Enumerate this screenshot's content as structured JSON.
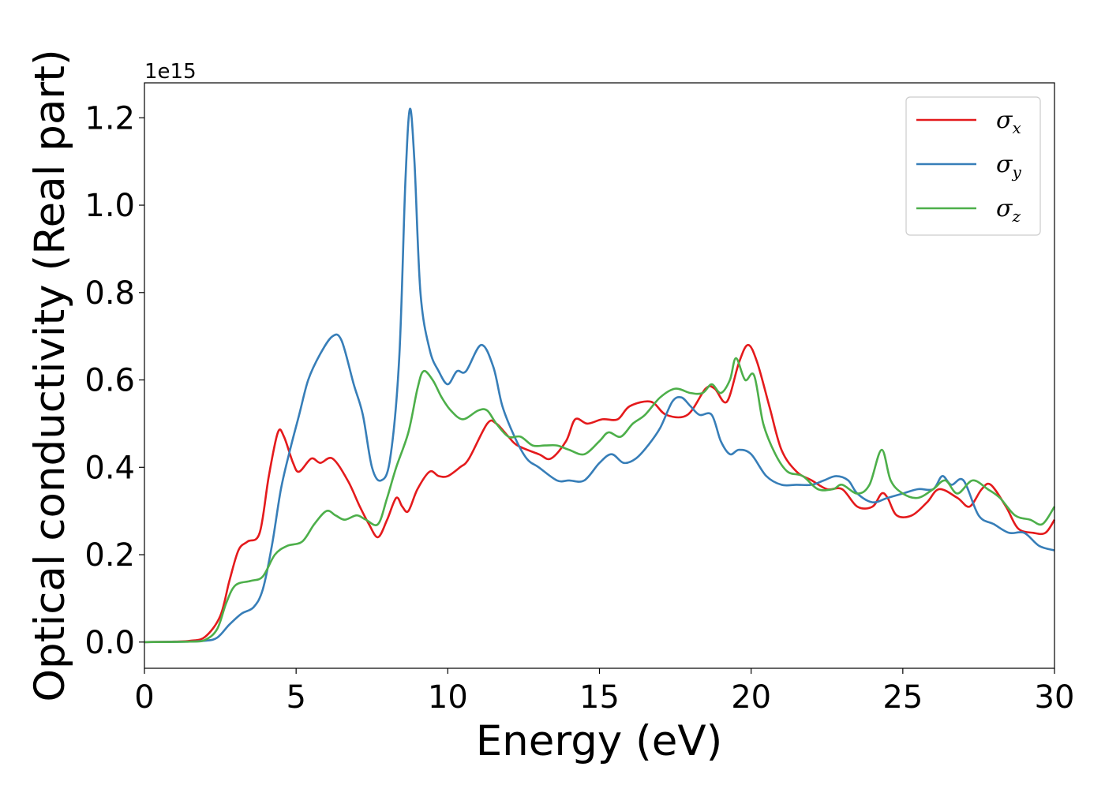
{
  "chart_data": {
    "type": "line",
    "xlabel": "Energy (eV)",
    "ylabel": "Optical conductivity (Real part)",
    "y_offset_label": "1e15",
    "xlim": [
      0,
      30
    ],
    "ylim": [
      -0.06,
      1.28
    ],
    "x_ticks": [
      0,
      5,
      10,
      15,
      20,
      25,
      30
    ],
    "x_tick_labels": [
      "0",
      "5",
      "10",
      "15",
      "20",
      "25",
      "30"
    ],
    "y_ticks": [
      0.0,
      0.2,
      0.4,
      0.6,
      0.8,
      1.0,
      1.2
    ],
    "y_tick_labels": [
      "0.0",
      "0.2",
      "0.4",
      "0.6",
      "0.8",
      "1.0",
      "1.2"
    ],
    "grid": false,
    "legend_position": "top-right",
    "series": [
      {
        "name": "σx",
        "symbol": "σ",
        "subscript": "x",
        "color": "#e41a1c",
        "points": [
          [
            0,
            0
          ],
          [
            1,
            0.001
          ],
          [
            1.5,
            0.003
          ],
          [
            2,
            0.012
          ],
          [
            2.5,
            0.06
          ],
          [
            2.8,
            0.14
          ],
          [
            3.1,
            0.21
          ],
          [
            3.4,
            0.23
          ],
          [
            3.8,
            0.25
          ],
          [
            4.1,
            0.38
          ],
          [
            4.4,
            0.48
          ],
          [
            4.6,
            0.47
          ],
          [
            4.9,
            0.41
          ],
          [
            5.1,
            0.39
          ],
          [
            5.5,
            0.42
          ],
          [
            5.8,
            0.41
          ],
          [
            6.2,
            0.42
          ],
          [
            6.7,
            0.37
          ],
          [
            7.1,
            0.31
          ],
          [
            7.4,
            0.27
          ],
          [
            7.7,
            0.24
          ],
          [
            8.0,
            0.28
          ],
          [
            8.3,
            0.33
          ],
          [
            8.5,
            0.31
          ],
          [
            8.7,
            0.3
          ],
          [
            9.0,
            0.35
          ],
          [
            9.4,
            0.39
          ],
          [
            9.7,
            0.38
          ],
          [
            10.0,
            0.38
          ],
          [
            10.4,
            0.4
          ],
          [
            10.7,
            0.42
          ],
          [
            11.3,
            0.5
          ],
          [
            11.6,
            0.5
          ],
          [
            12.0,
            0.47
          ],
          [
            12.3,
            0.45
          ],
          [
            13.0,
            0.43
          ],
          [
            13.4,
            0.42
          ],
          [
            13.9,
            0.46
          ],
          [
            14.2,
            0.51
          ],
          [
            14.6,
            0.5
          ],
          [
            15.1,
            0.51
          ],
          [
            15.6,
            0.51
          ],
          [
            16.0,
            0.54
          ],
          [
            16.7,
            0.55
          ],
          [
            17.2,
            0.52
          ],
          [
            17.9,
            0.52
          ],
          [
            18.5,
            0.58
          ],
          [
            18.8,
            0.58
          ],
          [
            19.2,
            0.55
          ],
          [
            19.6,
            0.64
          ],
          [
            19.9,
            0.68
          ],
          [
            20.2,
            0.64
          ],
          [
            20.6,
            0.54
          ],
          [
            21.0,
            0.44
          ],
          [
            21.5,
            0.39
          ],
          [
            22.0,
            0.37
          ],
          [
            22.5,
            0.35
          ],
          [
            23.0,
            0.35
          ],
          [
            23.5,
            0.31
          ],
          [
            24.0,
            0.31
          ],
          [
            24.3,
            0.34
          ],
          [
            24.5,
            0.33
          ],
          [
            24.8,
            0.29
          ],
          [
            25.3,
            0.29
          ],
          [
            25.8,
            0.32
          ],
          [
            26.2,
            0.35
          ],
          [
            26.8,
            0.33
          ],
          [
            27.2,
            0.31
          ],
          [
            27.6,
            0.35
          ],
          [
            27.9,
            0.36
          ],
          [
            28.4,
            0.31
          ],
          [
            28.8,
            0.26
          ],
          [
            29.3,
            0.25
          ],
          [
            29.7,
            0.25
          ],
          [
            30,
            0.28
          ]
        ]
      },
      {
        "name": "σy",
        "symbol": "σ",
        "subscript": "y",
        "color": "#377eb8",
        "points": [
          [
            0,
            0
          ],
          [
            1.5,
            0.001
          ],
          [
            2.0,
            0.003
          ],
          [
            2.4,
            0.01
          ],
          [
            2.8,
            0.04
          ],
          [
            3.2,
            0.065
          ],
          [
            3.6,
            0.08
          ],
          [
            3.9,
            0.12
          ],
          [
            4.2,
            0.22
          ],
          [
            4.5,
            0.35
          ],
          [
            4.8,
            0.44
          ],
          [
            5.1,
            0.52
          ],
          [
            5.4,
            0.6
          ],
          [
            5.8,
            0.66
          ],
          [
            6.2,
            0.7
          ],
          [
            6.5,
            0.69
          ],
          [
            6.9,
            0.59
          ],
          [
            7.2,
            0.52
          ],
          [
            7.5,
            0.4
          ],
          [
            7.8,
            0.37
          ],
          [
            8.1,
            0.42
          ],
          [
            8.4,
            0.65
          ],
          [
            8.6,
            1.05
          ],
          [
            8.75,
            1.22
          ],
          [
            8.9,
            1.1
          ],
          [
            9.1,
            0.8
          ],
          [
            9.4,
            0.67
          ],
          [
            9.7,
            0.62
          ],
          [
            10.0,
            0.59
          ],
          [
            10.3,
            0.62
          ],
          [
            10.6,
            0.62
          ],
          [
            11.1,
            0.68
          ],
          [
            11.5,
            0.63
          ],
          [
            11.8,
            0.54
          ],
          [
            12.2,
            0.47
          ],
          [
            12.6,
            0.42
          ],
          [
            13.0,
            0.4
          ],
          [
            13.6,
            0.37
          ],
          [
            14.0,
            0.37
          ],
          [
            14.5,
            0.37
          ],
          [
            15.0,
            0.41
          ],
          [
            15.4,
            0.43
          ],
          [
            15.8,
            0.41
          ],
          [
            16.2,
            0.42
          ],
          [
            16.6,
            0.45
          ],
          [
            17.0,
            0.49
          ],
          [
            17.4,
            0.55
          ],
          [
            17.7,
            0.56
          ],
          [
            18.0,
            0.54
          ],
          [
            18.3,
            0.52
          ],
          [
            18.7,
            0.52
          ],
          [
            19.0,
            0.46
          ],
          [
            19.3,
            0.43
          ],
          [
            19.6,
            0.44
          ],
          [
            20.0,
            0.43
          ],
          [
            20.5,
            0.38
          ],
          [
            21.0,
            0.36
          ],
          [
            21.5,
            0.36
          ],
          [
            22.0,
            0.36
          ],
          [
            22.4,
            0.37
          ],
          [
            22.8,
            0.38
          ],
          [
            23.2,
            0.37
          ],
          [
            23.5,
            0.34
          ],
          [
            24.0,
            0.32
          ],
          [
            24.5,
            0.33
          ],
          [
            25.0,
            0.34
          ],
          [
            25.5,
            0.35
          ],
          [
            26.0,
            0.35
          ],
          [
            26.3,
            0.38
          ],
          [
            26.6,
            0.36
          ],
          [
            27.0,
            0.37
          ],
          [
            27.5,
            0.29
          ],
          [
            28.0,
            0.27
          ],
          [
            28.5,
            0.25
          ],
          [
            29.0,
            0.25
          ],
          [
            29.5,
            0.22
          ],
          [
            30,
            0.21
          ]
        ]
      },
      {
        "name": "σz",
        "symbol": "σ",
        "subscript": "z",
        "color": "#4daf4a",
        "points": [
          [
            0,
            0
          ],
          [
            1.5,
            0.001
          ],
          [
            2.0,
            0.005
          ],
          [
            2.4,
            0.03
          ],
          [
            2.7,
            0.09
          ],
          [
            3.0,
            0.13
          ],
          [
            3.5,
            0.14
          ],
          [
            3.9,
            0.15
          ],
          [
            4.3,
            0.2
          ],
          [
            4.7,
            0.22
          ],
          [
            5.2,
            0.23
          ],
          [
            5.6,
            0.27
          ],
          [
            6.0,
            0.3
          ],
          [
            6.3,
            0.29
          ],
          [
            6.6,
            0.28
          ],
          [
            7.0,
            0.29
          ],
          [
            7.3,
            0.28
          ],
          [
            7.7,
            0.27
          ],
          [
            8.0,
            0.33
          ],
          [
            8.3,
            0.4
          ],
          [
            8.7,
            0.48
          ],
          [
            9.0,
            0.58
          ],
          [
            9.2,
            0.62
          ],
          [
            9.5,
            0.6
          ],
          [
            9.8,
            0.56
          ],
          [
            10.1,
            0.53
          ],
          [
            10.5,
            0.51
          ],
          [
            11.0,
            0.53
          ],
          [
            11.3,
            0.53
          ],
          [
            11.6,
            0.5
          ],
          [
            12.0,
            0.47
          ],
          [
            12.4,
            0.47
          ],
          [
            12.8,
            0.45
          ],
          [
            13.2,
            0.45
          ],
          [
            13.6,
            0.45
          ],
          [
            14.0,
            0.44
          ],
          [
            14.5,
            0.43
          ],
          [
            15.0,
            0.46
          ],
          [
            15.3,
            0.48
          ],
          [
            15.7,
            0.47
          ],
          [
            16.1,
            0.5
          ],
          [
            16.5,
            0.52
          ],
          [
            17.0,
            0.56
          ],
          [
            17.5,
            0.58
          ],
          [
            18.0,
            0.57
          ],
          [
            18.4,
            0.57
          ],
          [
            18.7,
            0.59
          ],
          [
            19.0,
            0.57
          ],
          [
            19.3,
            0.6
          ],
          [
            19.5,
            0.65
          ],
          [
            19.8,
            0.6
          ],
          [
            20.1,
            0.61
          ],
          [
            20.4,
            0.5
          ],
          [
            20.8,
            0.43
          ],
          [
            21.2,
            0.39
          ],
          [
            21.7,
            0.38
          ],
          [
            22.2,
            0.35
          ],
          [
            22.7,
            0.35
          ],
          [
            23.0,
            0.36
          ],
          [
            23.5,
            0.34
          ],
          [
            23.9,
            0.36
          ],
          [
            24.3,
            0.44
          ],
          [
            24.6,
            0.37
          ],
          [
            25.0,
            0.34
          ],
          [
            25.5,
            0.33
          ],
          [
            26.0,
            0.35
          ],
          [
            26.4,
            0.37
          ],
          [
            26.8,
            0.34
          ],
          [
            27.3,
            0.37
          ],
          [
            27.8,
            0.35
          ],
          [
            28.2,
            0.33
          ],
          [
            28.7,
            0.29
          ],
          [
            29.2,
            0.28
          ],
          [
            29.6,
            0.27
          ],
          [
            30,
            0.31
          ]
        ]
      }
    ]
  }
}
